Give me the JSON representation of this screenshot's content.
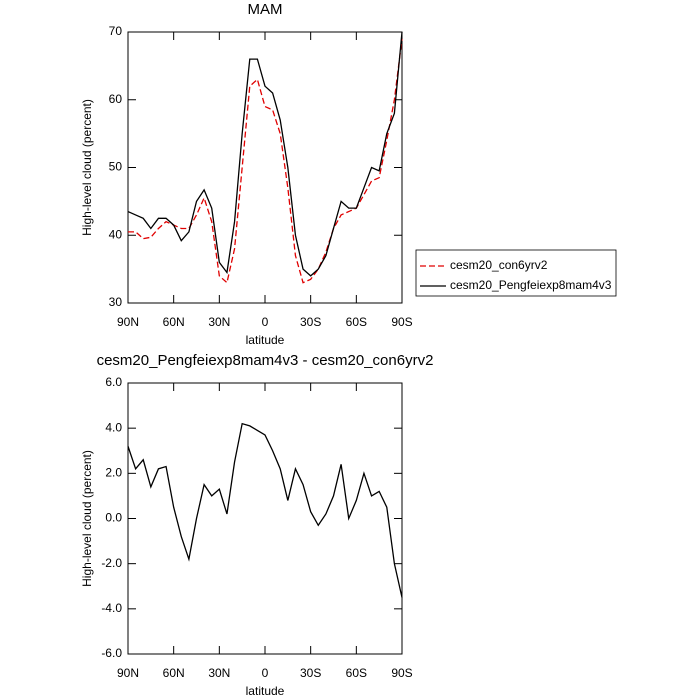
{
  "chart_data": [
    {
      "type": "line",
      "title": "MAM",
      "xlabel": "latitude",
      "ylabel": "High-level cloud (percent)",
      "x": [
        90,
        85,
        80,
        75,
        70,
        65,
        60,
        55,
        50,
        45,
        40,
        35,
        30,
        25,
        20,
        15,
        10,
        5,
        0,
        -5,
        -10,
        -15,
        -20,
        -25,
        -30,
        -35,
        -40,
        -45,
        -50,
        -55,
        -60,
        -65,
        -70,
        -75,
        -80,
        -85,
        -90
      ],
      "series": [
        {
          "name": "cesm20_con6yrv2",
          "color": "#e00000",
          "dash": true,
          "values": [
            40.5,
            40.5,
            39.5,
            39.7,
            41,
            42,
            41.5,
            41,
            41,
            43,
            45.5,
            42,
            34,
            33,
            38,
            50,
            62,
            63,
            59,
            58.5,
            55,
            47,
            37,
            33,
            33.5,
            35,
            37.5,
            41,
            43,
            43.5,
            44,
            46,
            48,
            48.5,
            54,
            60,
            69
          ]
        },
        {
          "name": "cesm20_Pengfeiexp8mam4v3",
          "color": "#000000",
          "dash": false,
          "values": [
            43.5,
            43,
            42.5,
            41,
            42.5,
            42.5,
            41.5,
            39.2,
            40.5,
            45,
            46.7,
            44,
            36,
            34.5,
            42,
            55,
            66,
            66,
            62,
            61,
            57,
            50,
            40,
            35,
            34,
            35,
            37,
            41,
            45,
            44,
            44,
            47,
            50,
            49.5,
            55,
            58,
            70
          ]
        }
      ],
      "xlim": [
        90,
        -90
      ],
      "xticks": [
        {
          "value": 90,
          "label": "90N"
        },
        {
          "value": 60,
          "label": "60N"
        },
        {
          "value": 30,
          "label": "30N"
        },
        0,
        {
          "value": -30,
          "label": "30S"
        },
        {
          "value": -60,
          "label": "60S"
        },
        {
          "value": -90,
          "label": "90S"
        }
      ],
      "ylim": [
        30,
        70
      ],
      "yticks": [
        30,
        40,
        50,
        60,
        70
      ],
      "legend": "right"
    },
    {
      "type": "line",
      "title": "cesm20_Pengfeiexp8mam4v3 - cesm20_con6yrv2",
      "xlabel": "latitude",
      "ylabel": "High-level cloud (percent)",
      "x": [
        90,
        85,
        80,
        75,
        70,
        65,
        60,
        55,
        50,
        45,
        40,
        35,
        30,
        25,
        20,
        15,
        10,
        5,
        0,
        -5,
        -10,
        -15,
        -20,
        -25,
        -30,
        -35,
        -40,
        -45,
        -50,
        -55,
        -60,
        -65,
        -70,
        -75,
        -80,
        -85,
        -90
      ],
      "color": "#000000",
      "values": [
        3.2,
        2.2,
        2.6,
        1.4,
        2.2,
        2.3,
        0.5,
        -0.8,
        -1.8,
        0,
        1.5,
        1.0,
        1.3,
        0.2,
        2.5,
        4.2,
        4.1,
        3.9,
        3.7,
        3.0,
        2.2,
        0.8,
        2.2,
        1.5,
        0.3,
        -0.3,
        0.2,
        1.0,
        2.4,
        0.0,
        0.8,
        2.0,
        1.0,
        1.2,
        0.5,
        -2.0,
        -3.5
      ],
      "xlim": [
        90,
        -90
      ],
      "xticks": [
        {
          "value": 90,
          "label": "90N"
        },
        {
          "value": 60,
          "label": "60N"
        },
        {
          "value": 30,
          "label": "30N"
        },
        0,
        {
          "value": -30,
          "label": "30S"
        },
        {
          "value": -60,
          "label": "60S"
        },
        {
          "value": -90,
          "label": "90S"
        }
      ],
      "ylim": [
        -6,
        6
      ],
      "yticks": [
        {
          "value": -6,
          "label": "-6.0"
        },
        {
          "value": -4,
          "label": "-4.0"
        },
        {
          "value": -2,
          "label": "-2.0"
        },
        {
          "value": 0,
          "label": "0.0"
        },
        {
          "value": 2,
          "label": "2.0"
        },
        {
          "value": 4,
          "label": "4.0"
        },
        {
          "value": 6,
          "label": "6.0"
        }
      ]
    }
  ]
}
